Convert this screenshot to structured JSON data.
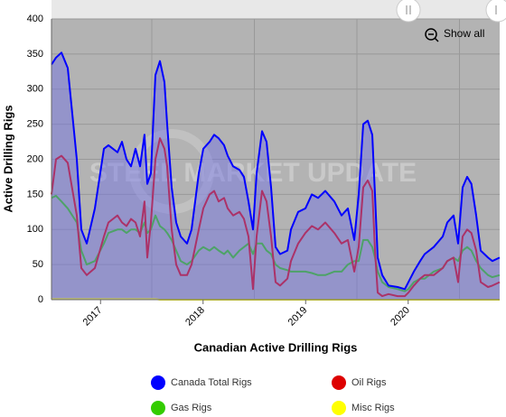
{
  "chart_data": {
    "type": "line",
    "title": "Canadian Active Drilling Rigs",
    "y_label": "Active Drilling Rigs",
    "watermark": "STEEL MARKET UPDATE",
    "button": "Show all",
    "x": [
      2017.022,
      2017.066,
      2017.119,
      2017.181,
      2017.269,
      2017.313,
      2017.366,
      2017.445,
      2017.533,
      2017.577,
      2017.665,
      2017.709,
      2017.753,
      2017.797,
      2017.841,
      2017.885,
      2017.929,
      2017.956,
      2017.991,
      2018.035,
      2018.079,
      2018.123,
      2018.15,
      2018.194,
      2018.238,
      2018.282,
      2018.344,
      2018.388,
      2018.458,
      2018.502,
      2018.564,
      2018.608,
      2018.652,
      2018.705,
      2018.74,
      2018.793,
      2018.855,
      2018.899,
      2018.943,
      2018.987,
      2019.022,
      2019.075,
      2019.119,
      2019.163,
      2019.207,
      2019.251,
      2019.322,
      2019.357,
      2019.427,
      2019.498,
      2019.56,
      2019.621,
      2019.692,
      2019.78,
      2019.85,
      2019.912,
      2019.974,
      2020.018,
      2020.062,
      2020.106,
      2020.15,
      2020.176,
      2020.203,
      2020.247,
      2020.308,
      2020.396,
      2020.467,
      2020.502,
      2020.555,
      2020.617,
      2020.661,
      2020.749,
      2020.837,
      2020.881,
      2020.943,
      2020.987,
      2021.031,
      2021.075,
      2021.116,
      2021.163,
      2021.207,
      2021.278,
      2021.321,
      2021.392
    ],
    "series": [
      {
        "name": "Canada Total Rigs",
        "color": "#0000ff",
        "fill": "rgba(110,110,230,0.45)",
        "values": [
          335,
          345,
          352,
          330,
          200,
          100,
          80,
          130,
          215,
          220,
          210,
          225,
          200,
          190,
          215,
          190,
          235,
          165,
          180,
          320,
          340,
          310,
          250,
          160,
          110,
          90,
          80,
          100,
          180,
          215,
          225,
          235,
          230,
          220,
          205,
          190,
          185,
          175,
          140,
          100,
          180,
          240,
          225,
          160,
          75,
          65,
          70,
          100,
          125,
          130,
          150,
          145,
          155,
          140,
          120,
          130,
          85,
          150,
          250,
          255,
          235,
          150,
          60,
          35,
          20,
          18,
          15,
          25,
          40,
          55,
          65,
          75,
          90,
          110,
          120,
          80,
          160,
          175,
          165,
          120,
          70,
          60,
          55,
          60
        ]
      },
      {
        "name": "Oil Rigs",
        "color": "#dd0000",
        "values": [
          150,
          200,
          205,
          195,
          120,
          45,
          35,
          45,
          90,
          110,
          120,
          110,
          105,
          115,
          110,
          90,
          140,
          60,
          110,
          200,
          230,
          215,
          190,
          100,
          50,
          35,
          35,
          50,
          100,
          130,
          150,
          155,
          140,
          145,
          130,
          120,
          125,
          115,
          90,
          15,
          90,
          155,
          140,
          90,
          25,
          20,
          30,
          55,
          80,
          95,
          105,
          100,
          110,
          95,
          80,
          85,
          40,
          75,
          160,
          170,
          155,
          70,
          10,
          5,
          8,
          5,
          5,
          10,
          20,
          30,
          35,
          35,
          45,
          55,
          60,
          25,
          90,
          100,
          95,
          70,
          25,
          18,
          20,
          25
        ]
      },
      {
        "name": "Gas Rigs",
        "color": "#33cc00",
        "values": [
          145,
          148,
          140,
          130,
          110,
          70,
          50,
          55,
          80,
          95,
          100,
          100,
          95,
          100,
          100,
          95,
          110,
          95,
          100,
          120,
          105,
          100,
          95,
          85,
          70,
          55,
          50,
          55,
          70,
          75,
          70,
          75,
          70,
          65,
          70,
          60,
          70,
          75,
          80,
          65,
          80,
          80,
          70,
          65,
          50,
          45,
          42,
          40,
          40,
          40,
          38,
          35,
          35,
          40,
          40,
          50,
          55,
          55,
          85,
          85,
          75,
          60,
          40,
          25,
          18,
          15,
          12,
          15,
          25,
          30,
          30,
          40,
          45,
          55,
          60,
          55,
          70,
          75,
          70,
          55,
          45,
          35,
          32,
          35
        ]
      },
      {
        "name": "Misc Rigs",
        "color": "#ffff00",
        "values": [
          1,
          1,
          1,
          1,
          1,
          1,
          1,
          1,
          1,
          1,
          1,
          1,
          1,
          1,
          1,
          1,
          1,
          1,
          1,
          1,
          0,
          0,
          0,
          0,
          0,
          0,
          0,
          0,
          0,
          0,
          0,
          0,
          0,
          0,
          0,
          0,
          0,
          0,
          0,
          0,
          0,
          0,
          0,
          0,
          0,
          0,
          0,
          0,
          0,
          0,
          0,
          0,
          0,
          0,
          0,
          0,
          0,
          0,
          0,
          0,
          0,
          0,
          0,
          0,
          0,
          0,
          0,
          0,
          0,
          0,
          0,
          0,
          0,
          0,
          0,
          0,
          0,
          0,
          0,
          0,
          0,
          0,
          0,
          0
        ]
      }
    ],
    "xlim": [
      2017.022,
      2021.392
    ],
    "xticks": [
      {
        "value": 2017.5,
        "label": "2017"
      },
      {
        "value": 2018.5,
        "label": "2018"
      },
      {
        "value": 2019.5,
        "label": "2019"
      },
      {
        "value": 2020.5,
        "label": "2020"
      }
    ],
    "xgrid": [
      2018,
      2019,
      2020,
      2021
    ],
    "ylim": [
      0,
      400
    ],
    "yticks": [
      0,
      50,
      100,
      150,
      200,
      250,
      300,
      350,
      400
    ],
    "grid": true
  }
}
